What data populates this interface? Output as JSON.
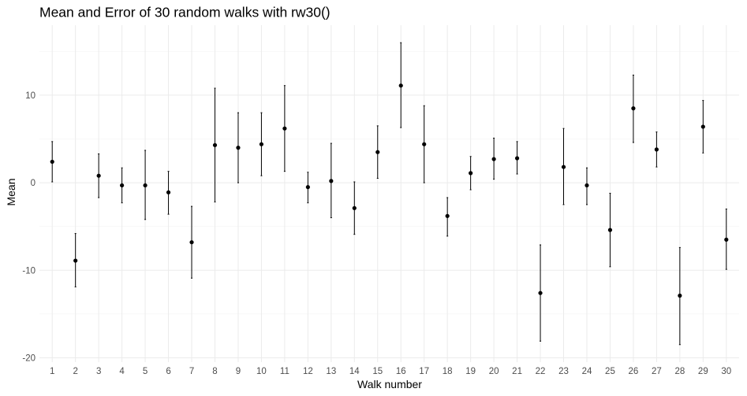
{
  "chart_data": {
    "type": "scatter",
    "title": "Mean and Error of 30 random walks with rw30()",
    "xlabel": "Walk number",
    "ylabel": "Mean",
    "x": [
      1,
      2,
      3,
      4,
      5,
      6,
      7,
      8,
      9,
      10,
      11,
      12,
      13,
      14,
      15,
      16,
      17,
      18,
      19,
      20,
      21,
      22,
      23,
      24,
      25,
      26,
      27,
      28,
      29,
      30
    ],
    "x_tick_labels": [
      "1",
      "2",
      "3",
      "4",
      "5",
      "6",
      "7",
      "8",
      "9",
      "10",
      "11",
      "12",
      "13",
      "14",
      "15",
      "16",
      "17",
      "18",
      "19",
      "20",
      "21",
      "22",
      "23",
      "24",
      "25",
      "26",
      "27",
      "28",
      "29",
      "30"
    ],
    "y_ticks": [
      -20,
      -10,
      0,
      10
    ],
    "y_tick_labels": [
      "-20",
      "-10",
      "0",
      "10"
    ],
    "ylim": [
      -20.5,
      18.0
    ],
    "grid": true,
    "series": [
      {
        "mean": [
          2.4,
          -8.9,
          0.8,
          -0.3,
          -0.3,
          -1.1,
          -6.8,
          4.3,
          4.0,
          4.4,
          6.2,
          -0.5,
          0.2,
          -2.9,
          3.5,
          11.1,
          4.4,
          -3.8,
          1.1,
          2.7,
          2.8,
          -12.6,
          1.8,
          -0.3,
          -5.4,
          8.5,
          3.8,
          -12.9,
          6.4,
          -6.5
        ],
        "lower": [
          0.1,
          -11.9,
          -1.7,
          -2.3,
          -4.2,
          -3.6,
          -10.9,
          -2.2,
          0.0,
          0.8,
          1.3,
          -2.3,
          -4.0,
          -5.9,
          0.5,
          6.3,
          0.0,
          -6.1,
          -0.8,
          0.4,
          1.0,
          -18.1,
          -2.5,
          -2.5,
          -9.6,
          4.6,
          1.8,
          -18.5,
          3.4,
          -9.9
        ],
        "upper": [
          4.7,
          -5.8,
          3.3,
          1.7,
          3.7,
          1.3,
          -2.7,
          10.8,
          8.0,
          8.0,
          11.1,
          1.2,
          4.5,
          0.1,
          6.5,
          16.0,
          8.8,
          -1.7,
          3.0,
          5.1,
          4.7,
          -7.1,
          6.2,
          1.7,
          -1.2,
          12.3,
          5.8,
          -7.4,
          9.4,
          -3.0
        ],
        "color": "#000000"
      }
    ]
  }
}
